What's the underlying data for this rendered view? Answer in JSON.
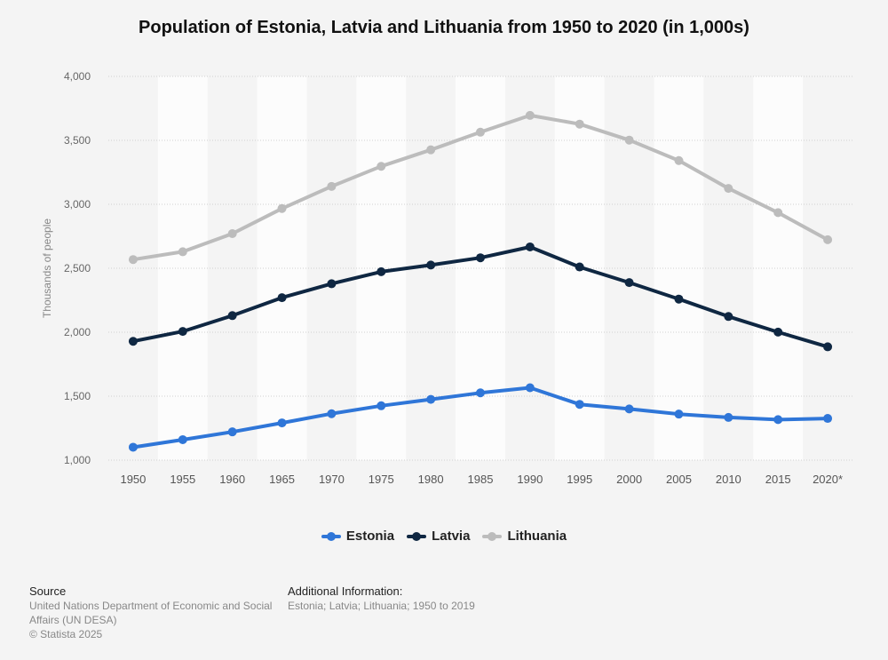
{
  "title": "Population of Estonia, Latvia and Lithuania from 1950 to 2020 (in 1,000s)",
  "colors": {
    "estonia": "#2f76d8",
    "latvia": "#0f2742",
    "lithuania": "#bcbcbc",
    "grid": "#cfcfcf",
    "band": "#ffffff"
  },
  "chart_data": {
    "type": "line",
    "title": "Population of Estonia, Latvia and Lithuania from 1950 to 2020 (in 1,000s)",
    "xlabel": "",
    "ylabel": "Thousands of people",
    "ylim": [
      1000,
      4000
    ],
    "yticks": [
      1000,
      1500,
      2000,
      2500,
      3000,
      3500,
      4000
    ],
    "ytick_labels": [
      "1,000",
      "1,500",
      "2,000",
      "2,500",
      "3,000",
      "3,500",
      "4,000"
    ],
    "grid": true,
    "legend": "bottom",
    "categories": [
      "1950",
      "1955",
      "1960",
      "1965",
      "1970",
      "1975",
      "1980",
      "1985",
      "1990",
      "1995",
      "2000",
      "2005",
      "2010",
      "2015",
      "2020*"
    ],
    "series": [
      {
        "name": "Estonia",
        "color": "#2f76d8",
        "values": [
          1101,
          1160,
          1221,
          1291,
          1363,
          1425,
          1475,
          1526,
          1566,
          1436,
          1400,
          1360,
          1334,
          1317,
          1326
        ]
      },
      {
        "name": "Latvia",
        "color": "#0f2742",
        "values": [
          1929,
          2006,
          2130,
          2270,
          2379,
          2473,
          2525,
          2582,
          2667,
          2510,
          2388,
          2259,
          2123,
          2001,
          1886
        ]
      },
      {
        "name": "Lithuania",
        "color": "#bcbcbc",
        "values": [
          2568,
          2629,
          2771,
          2967,
          3140,
          3297,
          3426,
          3564,
          3695,
          3627,
          3502,
          3342,
          3124,
          2935,
          2723
        ]
      }
    ]
  },
  "legend": [
    {
      "label": "Estonia",
      "color": "#2f76d8"
    },
    {
      "label": "Latvia",
      "color": "#0f2742"
    },
    {
      "label": "Lithuania",
      "color": "#bcbcbc"
    }
  ],
  "footer": {
    "source_heading": "Source",
    "source_text": "United Nations Department of Economic and Social Affairs (UN DESA)",
    "copyright": "© Statista 2025",
    "additional_heading": "Additional Information:",
    "additional_text": "Estonia; Latvia; Lithuania; 1950 to 2019"
  }
}
